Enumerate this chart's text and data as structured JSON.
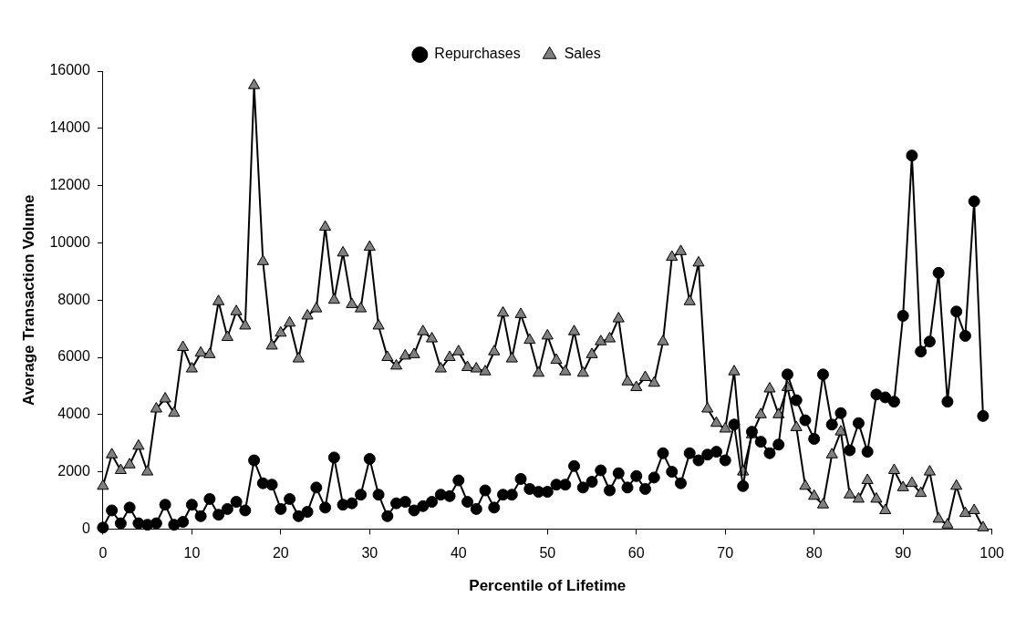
{
  "chart_data": {
    "type": "line",
    "xlabel": "Percentile of Lifetime",
    "ylabel": "Average Transaction Volume",
    "x": [
      0,
      1,
      2,
      3,
      4,
      5,
      6,
      7,
      8,
      9,
      10,
      11,
      12,
      13,
      14,
      15,
      16,
      17,
      18,
      19,
      20,
      21,
      22,
      23,
      24,
      25,
      26,
      27,
      28,
      29,
      30,
      31,
      32,
      33,
      34,
      35,
      36,
      37,
      38,
      39,
      40,
      41,
      42,
      43,
      44,
      45,
      46,
      47,
      48,
      49,
      50,
      51,
      52,
      53,
      54,
      55,
      56,
      57,
      58,
      59,
      60,
      61,
      62,
      63,
      64,
      65,
      66,
      67,
      68,
      69,
      70,
      71,
      72,
      73,
      74,
      75,
      76,
      77,
      78,
      79,
      80,
      81,
      82,
      83,
      84,
      85,
      86,
      87,
      88,
      89,
      90,
      91,
      92,
      93,
      94,
      95,
      96,
      97,
      98,
      99
    ],
    "xlim": [
      0,
      100
    ],
    "xticks": [
      0,
      10,
      20,
      30,
      40,
      50,
      60,
      70,
      80,
      90,
      100
    ],
    "ylim": [
      0,
      16000
    ],
    "yticks": [
      0,
      2000,
      4000,
      6000,
      8000,
      10000,
      12000,
      14000,
      16000
    ],
    "grid": false,
    "legend": "top",
    "line_style": "solid",
    "series": [
      {
        "name": "Repurchases",
        "color": "#000000",
        "marker": "circle",
        "values": [
          50,
          650,
          200,
          750,
          200,
          150,
          200,
          850,
          150,
          250,
          850,
          450,
          1050,
          500,
          700,
          950,
          650,
          2400,
          1600,
          1550,
          700,
          1050,
          450,
          600,
          1450,
          750,
          2500,
          850,
          900,
          1200,
          2450,
          1200,
          450,
          900,
          950,
          650,
          800,
          950,
          1200,
          1150,
          1700,
          950,
          700,
          1350,
          750,
          1200,
          1200,
          1750,
          1400,
          1300,
          1300,
          1550,
          1550,
          2200,
          1450,
          1650,
          2050,
          1350,
          1950,
          1450,
          1850,
          1400,
          1800,
          2650,
          2000,
          1600,
          2650,
          2400,
          2600,
          2700,
          2400,
          3650,
          1500,
          3400,
          3050,
          2650,
          2950,
          5400,
          4500,
          3800,
          3150,
          5400,
          3650,
          4050,
          2750,
          3700,
          2700,
          4700,
          4600,
          4450,
          7450,
          13050,
          6200,
          6550,
          8950,
          4450,
          7600,
          6750,
          11450,
          3950
        ]
      },
      {
        "name": "Sales",
        "color": "#808080",
        "marker": "triangle",
        "values": [
          1500,
          2600,
          2050,
          2250,
          2900,
          2000,
          4200,
          4550,
          4050,
          6350,
          5600,
          6150,
          6100,
          7950,
          6700,
          7600,
          7100,
          15500,
          9350,
          6400,
          6850,
          7200,
          5950,
          7450,
          7700,
          10550,
          8000,
          9650,
          7850,
          7700,
          9850,
          7100,
          6000,
          5700,
          6050,
          6100,
          6900,
          6650,
          5600,
          6000,
          6200,
          5650,
          5600,
          5500,
          6200,
          7550,
          5950,
          7500,
          6600,
          5450,
          6750,
          5900,
          5500,
          6900,
          5450,
          6100,
          6550,
          6650,
          7350,
          5150,
          4950,
          5300,
          5100,
          6550,
          9500,
          9700,
          7950,
          9300,
          4200,
          3700,
          3500,
          5500,
          2000,
          3300,
          4000,
          4900,
          4000,
          4950,
          3550,
          1500,
          1150,
          850,
          2600,
          3400,
          1200,
          1050,
          1700,
          1050,
          650,
          2050,
          1450,
          1600,
          1250,
          2000,
          350,
          150,
          1500,
          550,
          650,
          50
        ]
      }
    ]
  }
}
